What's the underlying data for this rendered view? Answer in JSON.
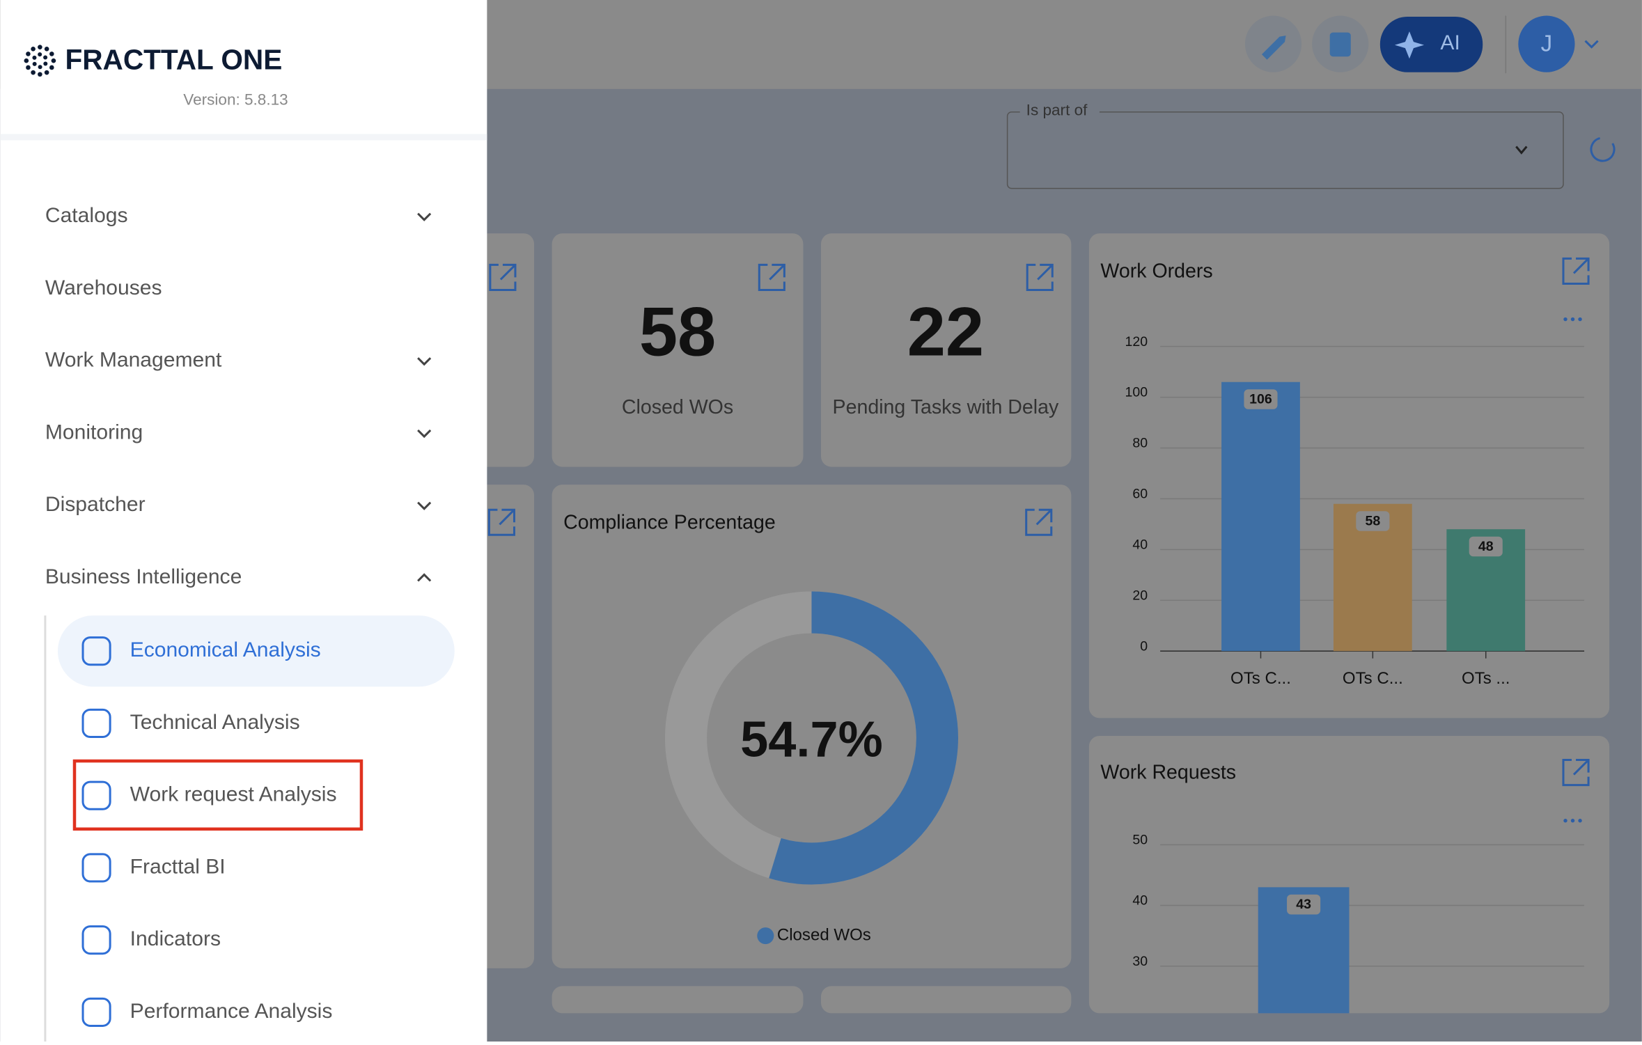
{
  "sidebar": {
    "brand": "FRACTTAL ONE",
    "version": "Version: 5.8.13",
    "menu": [
      {
        "label": "Catalogs",
        "chevron": "down"
      },
      {
        "label": "Warehouses"
      },
      {
        "label": "Work Management",
        "chevron": "down"
      },
      {
        "label": "Monitoring",
        "chevron": "down"
      },
      {
        "label": "Dispatcher",
        "chevron": "down"
      },
      {
        "label": "Business Intelligence",
        "chevron": "up"
      }
    ],
    "submenu": [
      {
        "label": "Economical Analysis",
        "active": true
      },
      {
        "label": "Technical Analysis"
      },
      {
        "label": "Work request Analysis",
        "highlighted": true
      },
      {
        "label": "Fracttal BI"
      },
      {
        "label": "Indicators"
      },
      {
        "label": "Performance Analysis"
      }
    ]
  },
  "header": {
    "ai": "AI",
    "avatar": "J"
  },
  "filter": {
    "label": "Is part of"
  },
  "cards": [
    {
      "value": 58,
      "label": "Closed WOs"
    },
    {
      "value": 22,
      "label": "Pending Tasks with Delay"
    }
  ],
  "compliance": {
    "type": "pie",
    "title": "Compliance Percentage",
    "values": [
      54.7
    ],
    "value_labels": [
      "54.7%"
    ],
    "legend": "Closed WOs",
    "color": "#3e6fa5"
  },
  "work_orders": {
    "type": "bar",
    "title": "Work Orders",
    "categories": [
      "OTs C...",
      "OTs C...",
      "OTs ..."
    ],
    "values": [
      106,
      58,
      48
    ],
    "colors": [
      "#3e6fa5",
      "#9b7a4d",
      "#3f7a6e"
    ],
    "ylim": [
      0,
      120
    ],
    "yticks": [
      0,
      20,
      40,
      60,
      80,
      100,
      120
    ]
  },
  "work_requests": {
    "type": "bar",
    "title": "Work Requests",
    "categories": [
      null
    ],
    "values": [
      43
    ],
    "colors": [
      "#3e6fa5"
    ],
    "ylim": [
      0,
      50
    ],
    "yticks": [
      30,
      40,
      50
    ]
  }
}
